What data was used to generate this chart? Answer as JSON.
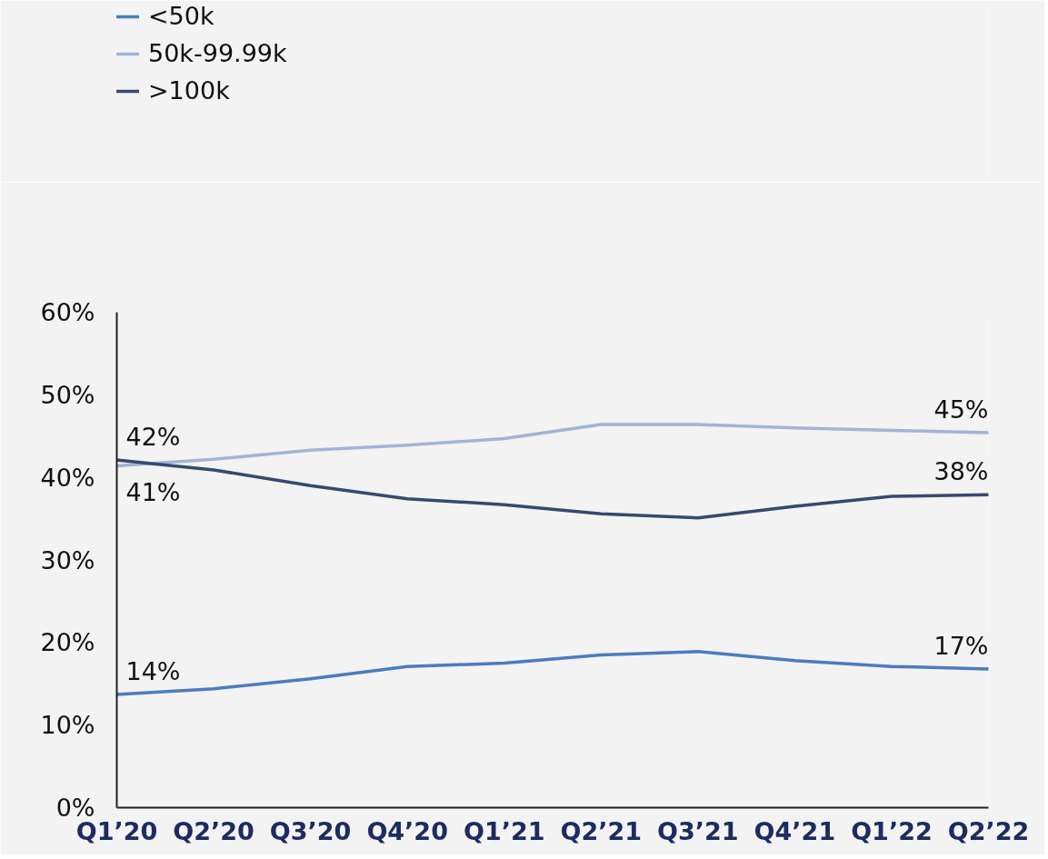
{
  "chart_data": {
    "type": "line",
    "categories": [
      "Q1’20",
      "Q2’20",
      "Q3’20",
      "Q4’20",
      "Q1’21",
      "Q2’21",
      "Q3’21",
      "Q4’21",
      "Q1’22",
      "Q2’22"
    ],
    "series": [
      {
        "name": "<50k",
        "color": "#4a7cc0",
        "values": [
          13.7,
          14.4,
          15.6,
          17.1,
          17.5,
          18.5,
          18.9,
          17.8,
          17.1,
          16.8
        ],
        "value_labels": [
          "14%",
          null,
          null,
          null,
          null,
          null,
          null,
          null,
          null,
          "17%"
        ]
      },
      {
        "name": "50k-99.99k",
        "color": "#a0b4d4",
        "values": [
          41.4,
          42.2,
          43.3,
          43.9,
          44.7,
          46.4,
          46.4,
          46.0,
          45.7,
          45.4
        ],
        "value_labels": [
          "41%",
          null,
          null,
          null,
          null,
          null,
          null,
          null,
          null,
          "45%"
        ]
      },
      {
        "name": ">100k",
        "color": "#354a6e",
        "values": [
          42.1,
          40.9,
          39.0,
          37.4,
          36.7,
          35.6,
          35.1,
          36.5,
          37.7,
          37.9
        ],
        "value_labels": [
          "42%",
          null,
          null,
          null,
          null,
          null,
          null,
          null,
          null,
          "38%"
        ]
      }
    ],
    "ylim": [
      0,
      60
    ],
    "yticks": [
      {
        "value": 0,
        "label": "0%"
      },
      {
        "value": 10,
        "label": "10%"
      },
      {
        "value": 20,
        "label": "20%"
      },
      {
        "value": 30,
        "label": "30%"
      },
      {
        "value": 40,
        "label": "40%"
      },
      {
        "value": 50,
        "label": "50%"
      },
      {
        "value": 60,
        "label": "60%"
      }
    ],
    "grid": false,
    "legend": "top left",
    "marker": "none",
    "line_style": "solid"
  }
}
